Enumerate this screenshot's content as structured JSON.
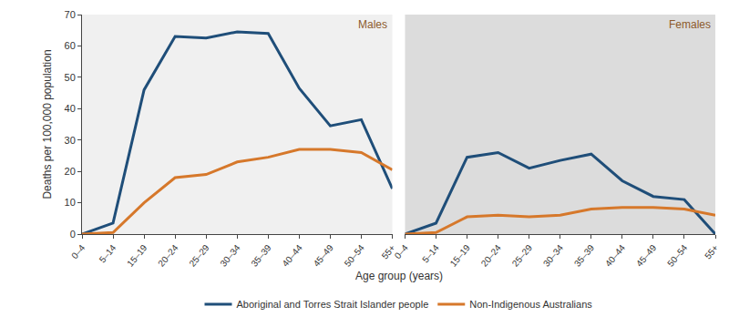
{
  "chart_data": {
    "type": "line",
    "x_label": "Age group (years)",
    "y_label": "Deaths per 100,000 population",
    "categories": [
      "0–4",
      "5–14",
      "15–19",
      "20–24",
      "25–29",
      "30–34",
      "35–39",
      "40–44",
      "45–49",
      "50–54",
      "55+"
    ],
    "ylim": [
      0,
      70
    ],
    "yticks": [
      0,
      10,
      20,
      30,
      40,
      50,
      60,
      70
    ],
    "grid": false,
    "legend": "bottom",
    "series": [
      {
        "name": "Aboriginal and Torres Strait Islander people",
        "color": "#1f4e79"
      },
      {
        "name": "Non-Indigenous Australians",
        "color": "#d6782b"
      }
    ],
    "panels": [
      {
        "title": "Males",
        "values": [
          [
            0,
            3.5,
            46,
            63,
            62.5,
            64.5,
            64,
            46.5,
            34.5,
            36.5,
            14.5
          ],
          [
            0,
            0.5,
            10,
            18,
            19,
            23,
            24.5,
            27,
            27,
            26,
            20.5
          ]
        ]
      },
      {
        "title": "Females",
        "values": [
          [
            0,
            3.5,
            24.5,
            26,
            21,
            23.5,
            25.5,
            17,
            12,
            11,
            0
          ],
          [
            0,
            0.5,
            5.5,
            6,
            5.5,
            6,
            8,
            8.5,
            8.5,
            8,
            6
          ]
        ]
      }
    ]
  }
}
